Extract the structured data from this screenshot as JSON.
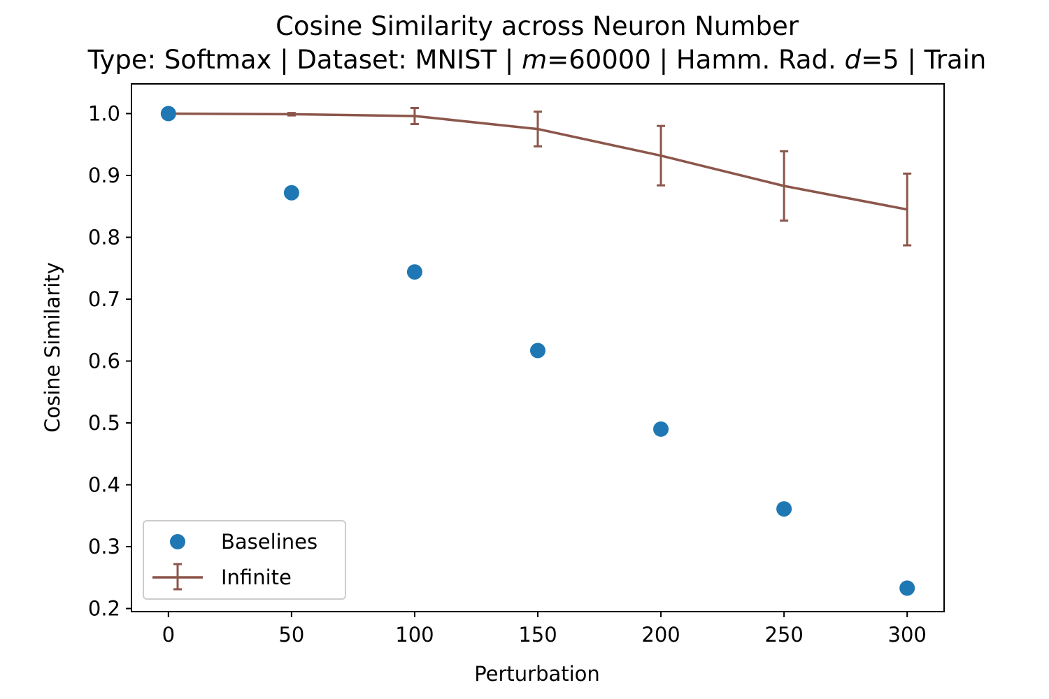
{
  "chart_data": {
    "type": "scatter",
    "title": "Cosine Similarity across Neuron Number",
    "subtitle": {
      "prefix": "Type: Softmax | Dataset: MNIST | ",
      "m_var": "m",
      "m_value": "=60000 | Hamm. Rad. ",
      "d_var": "d",
      "d_value": "=5 | Train"
    },
    "xlabel": "Perturbation",
    "ylabel": "Cosine Similarity",
    "xlim": [
      -15,
      315
    ],
    "ylim": [
      0.195,
      1.048
    ],
    "xticks": [
      0,
      50,
      100,
      150,
      200,
      250,
      300
    ],
    "xtick_labels": [
      "0",
      "50",
      "100",
      "150",
      "200",
      "250",
      "300"
    ],
    "yticks": [
      0.2,
      0.3,
      0.4,
      0.5,
      0.6,
      0.7,
      0.8,
      0.9,
      1.0
    ],
    "ytick_labels": [
      "0.2",
      "0.3",
      "0.4",
      "0.5",
      "0.6",
      "0.7",
      "0.8",
      "0.9",
      "1.0"
    ],
    "grid": false,
    "legend_position": "lower-left",
    "series": [
      {
        "name": "Baselines",
        "kind": "scatter",
        "color": "#1f77b4",
        "x": [
          0,
          50,
          100,
          150,
          200,
          250,
          300
        ],
        "y": [
          1.0,
          0.872,
          0.744,
          0.617,
          0.49,
          0.361,
          0.233
        ]
      },
      {
        "name": "Infinite",
        "kind": "line-errorbar",
        "color": "#8c564b",
        "x": [
          0,
          50,
          100,
          150,
          200,
          250,
          300
        ],
        "y": [
          1.0,
          0.999,
          0.996,
          0.975,
          0.932,
          0.883,
          0.845
        ],
        "err": [
          0.0,
          0.002,
          0.013,
          0.028,
          0.048,
          0.056,
          0.058
        ]
      }
    ]
  }
}
